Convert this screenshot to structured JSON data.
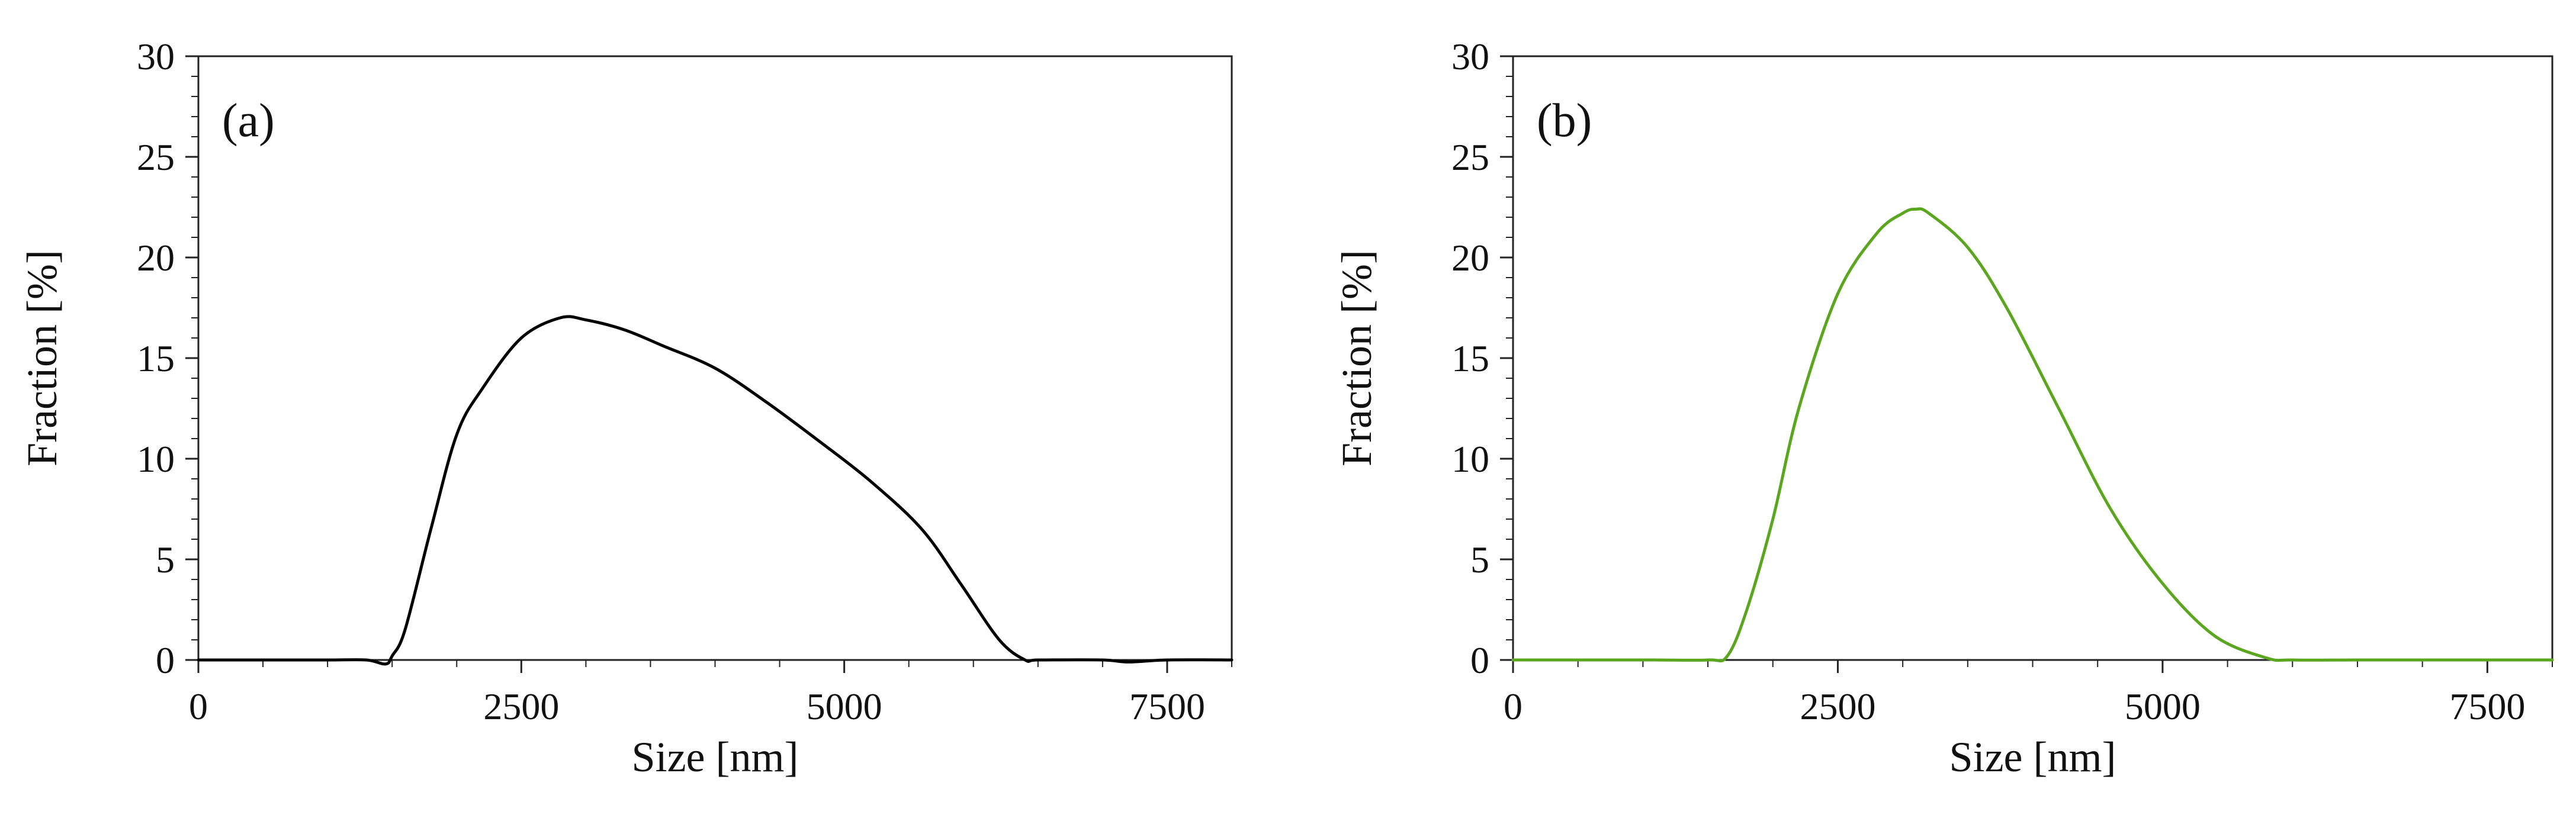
{
  "chart_data": [
    {
      "type": "line",
      "panel_label": "(a)",
      "xlabel": "Size [nm]",
      "ylabel": "Fraction [%]",
      "xlim": [
        0,
        8000
      ],
      "ylim": [
        0,
        30
      ],
      "xticks": [
        0,
        2500,
        5000,
        7500
      ],
      "yticks": [
        0,
        5,
        10,
        15,
        20,
        25,
        30
      ],
      "grid": false,
      "series": [
        {
          "color": "#000000",
          "x": [
            0,
            500,
            1000,
            1300,
            1450,
            1500,
            1600,
            1800,
            2000,
            2200,
            2500,
            2800,
            3000,
            3300,
            3600,
            4000,
            4400,
            4800,
            5200,
            5600,
            5900,
            6200,
            6400,
            6500,
            7000,
            7200,
            7500,
            8000
          ],
          "y": [
            0,
            0,
            0,
            0,
            -0.2,
            0.2,
            1.5,
            6.5,
            11.2,
            13.5,
            16.0,
            17.0,
            16.9,
            16.4,
            15.6,
            14.5,
            12.8,
            10.9,
            8.9,
            6.5,
            3.8,
            1.0,
            0,
            0,
            0,
            -0.1,
            0,
            0
          ]
        }
      ]
    },
    {
      "type": "line",
      "panel_label": "(b)",
      "xlabel": "Size [nm]",
      "ylabel": "Fraction [%]",
      "xlim": [
        0,
        8000
      ],
      "ylim": [
        0,
        30
      ],
      "xticks": [
        0,
        2500,
        5000,
        7500
      ],
      "yticks": [
        0,
        5,
        10,
        15,
        20,
        25,
        30
      ],
      "grid": false,
      "series": [
        {
          "color": "#5aa61e",
          "x": [
            0,
            1000,
            1500,
            1650,
            1800,
            2000,
            2200,
            2500,
            2800,
            3000,
            3100,
            3200,
            3500,
            3800,
            4200,
            4600,
            5000,
            5400,
            5800,
            6000,
            6500,
            7000,
            8000
          ],
          "y": [
            0,
            0,
            0,
            0.2,
            2.5,
            7.0,
            12.5,
            18.2,
            21.2,
            22.2,
            22.4,
            22.2,
            20.5,
            17.5,
            12.5,
            7.5,
            3.8,
            1.2,
            0.1,
            0,
            0,
            0,
            0
          ]
        }
      ]
    }
  ]
}
